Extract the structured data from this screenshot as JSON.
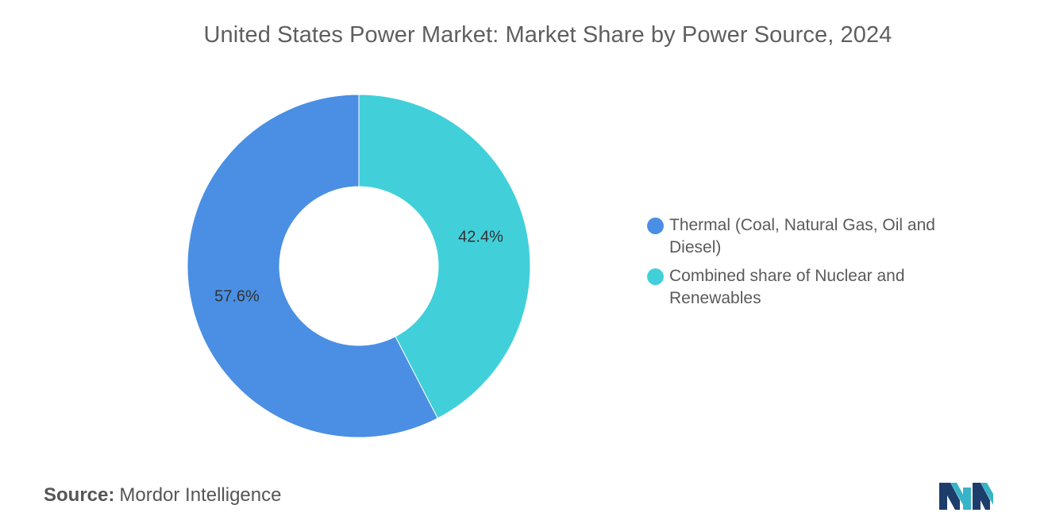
{
  "chart_data": {
    "type": "pie",
    "variant": "donut",
    "title": "United States Power Market: Market Share by Power Source, 2024",
    "series": [
      {
        "name": "Thermal (Coal, Natural Gas, Oil and Diesel)",
        "value": 57.6,
        "label": "57.6%",
        "color": "#4a8fe3"
      },
      {
        "name": "Combined share of Nuclear and Renewables",
        "value": 42.4,
        "label": "42.4%",
        "color": "#41d0da"
      }
    ],
    "legend_position": "right"
  },
  "source": {
    "prefix": "Source:",
    "value": "Mordor Intelligence"
  },
  "logo": {
    "icon": "mordor-intelligence-logo",
    "colors": [
      "#1d3e6b",
      "#39b3c7"
    ]
  }
}
